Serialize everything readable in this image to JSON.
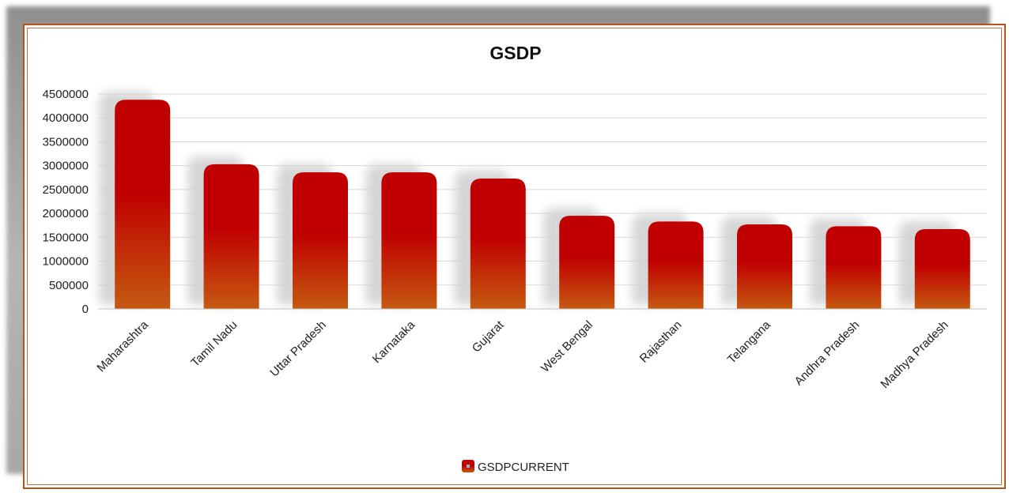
{
  "chart_data": {
    "type": "bar",
    "title": "GSDP",
    "xlabel": "",
    "ylabel": "",
    "categories": [
      "Maharashtra",
      "Tamil Nadu",
      "Uttar Pradesh",
      "Karnataka",
      "Gujarat",
      "West Bengal",
      "Rajasthan",
      "Telangana",
      "Andhra Pradesh",
      "Madhya Pradesh"
    ],
    "series": [
      {
        "name": "GSDPCURRENT",
        "values": [
          4380000,
          3030000,
          2860000,
          2860000,
          2730000,
          1950000,
          1830000,
          1770000,
          1730000,
          1670000
        ]
      }
    ],
    "ylim": [
      0,
      4500000
    ],
    "yticks": [
      "0",
      "500000",
      "1000000",
      "1500000",
      "2000000",
      "2500000",
      "3000000",
      "3500000",
      "4000000",
      "4500000"
    ],
    "grid": true,
    "legend": "bottom",
    "colors": {
      "bar_top": "#c00000",
      "bar_bottom": "#c55a11",
      "frame": "#b2541c"
    }
  }
}
